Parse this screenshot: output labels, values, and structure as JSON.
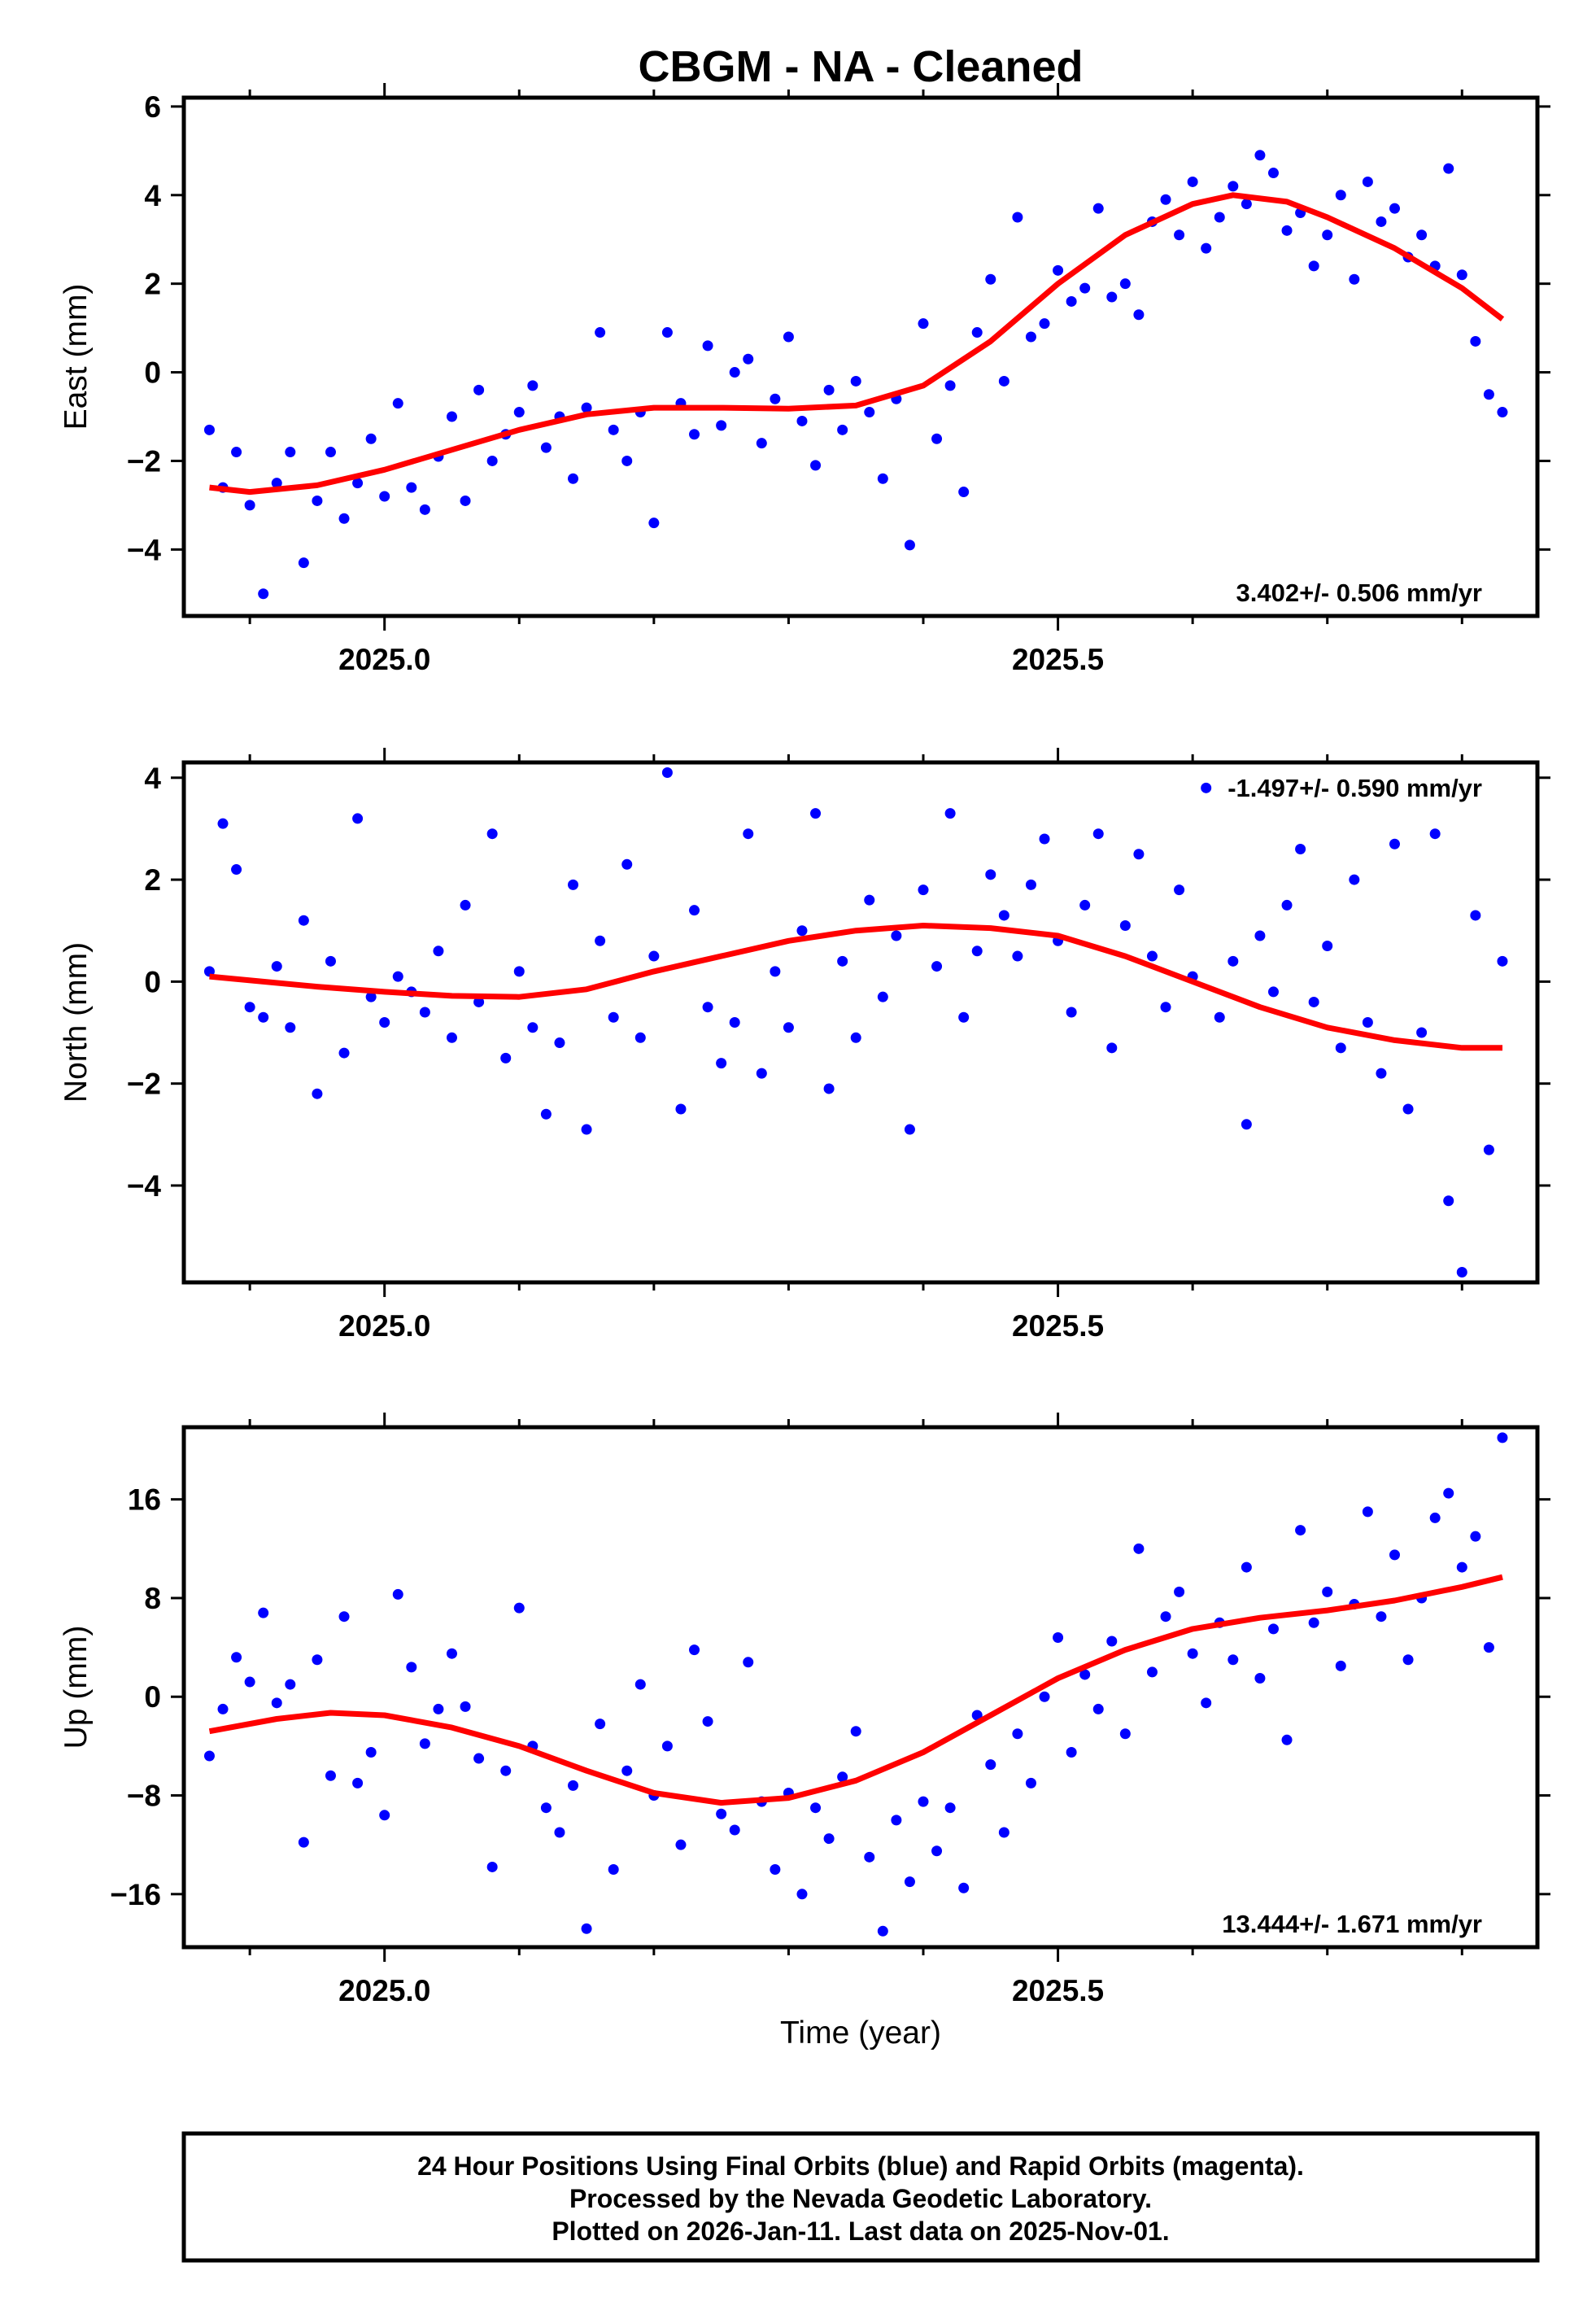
{
  "title": "CBGM  - NA - Cleaned",
  "footer": {
    "line1": "24 Hour Positions Using Final Orbits (blue) and Rapid Orbits (magenta).",
    "line2": "Processed by the Nevada Geodetic Laboratory.",
    "line3": "Plotted on 2026-Jan-11. Last data on 2025-Nov-01."
  },
  "colors": {
    "points": "#0000ff",
    "fit": "#ff0000"
  },
  "chart_data": [
    {
      "type": "scatter",
      "ylabel": "East (mm)",
      "xlabel": "",
      "rate": "3.402+/- 0.506 mm/yr",
      "rate_position": "bottom-right",
      "xlim": [
        2024.851,
        2025.856
      ],
      "ylim": [
        -5.5,
        6.2
      ],
      "xticks": [
        2025.0,
        2025.5
      ],
      "xtick_labels": [
        "2025.0",
        "2025.5"
      ],
      "yticks": [
        -4,
        -2,
        0,
        2,
        4,
        6
      ],
      "x_start": 2024.87,
      "x_step": 0.01,
      "y": [
        -1.3,
        -2.6,
        -1.8,
        -3.0,
        -5.0,
        -2.5,
        -1.8,
        -4.3,
        -2.9,
        -1.8,
        -3.3,
        -2.5,
        -1.5,
        -2.8,
        -0.7,
        -2.6,
        -3.1,
        -1.9,
        -1.0,
        -2.9,
        -0.4,
        -2.0,
        -1.4,
        -0.9,
        -0.3,
        -1.7,
        -1.0,
        -2.4,
        -0.8,
        0.9,
        -1.3,
        -2.0,
        -0.9,
        -3.4,
        0.9,
        -0.7,
        -1.4,
        0.6,
        -1.2,
        0.0,
        0.3,
        -1.6,
        -0.6,
        0.8,
        -1.1,
        -2.1,
        -0.4,
        -1.3,
        -0.2,
        -0.9,
        -2.4,
        -0.6,
        -3.9,
        1.1,
        -1.5,
        -0.3,
        -2.7,
        0.9,
        2.1,
        -0.2,
        3.5,
        0.8,
        1.1,
        2.3,
        1.6,
        1.9,
        3.7,
        1.7,
        2.0,
        1.3,
        3.4,
        3.9,
        3.1,
        4.3,
        2.8,
        3.5,
        4.2,
        3.8,
        4.9,
        4.5,
        3.2,
        3.6,
        2.4,
        3.1,
        4.0,
        2.1,
        4.3,
        3.4,
        3.7,
        2.6,
        3.1,
        2.4,
        4.6,
        2.2,
        0.7,
        -0.5,
        -0.9
      ],
      "fit": {
        "x": [
          2024.87,
          2024.9,
          2024.95,
          2025.0,
          2025.05,
          2025.1,
          2025.15,
          2025.2,
          2025.25,
          2025.3,
          2025.35,
          2025.4,
          2025.45,
          2025.5,
          2025.55,
          2025.6,
          2025.63,
          2025.67,
          2025.7,
          2025.75,
          2025.8,
          2025.83
        ],
        "y": [
          -2.6,
          -2.7,
          -2.55,
          -2.2,
          -1.75,
          -1.3,
          -0.95,
          -0.8,
          -0.8,
          -0.82,
          -0.75,
          -0.3,
          0.7,
          2.0,
          3.1,
          3.8,
          4.0,
          3.85,
          3.5,
          2.8,
          1.9,
          1.2
        ]
      }
    },
    {
      "type": "scatter",
      "ylabel": "North (mm)",
      "xlabel": "",
      "rate": "-1.497+/- 0.590 mm/yr",
      "rate_position": "top-right",
      "xlim": [
        2024.851,
        2025.856
      ],
      "ylim": [
        -5.9,
        4.3
      ],
      "xticks": [
        2025.0,
        2025.5
      ],
      "xtick_labels": [
        "2025.0",
        "2025.5"
      ],
      "yticks": [
        -4,
        -2,
        0,
        2,
        4
      ],
      "x_start": 2024.87,
      "x_step": 0.01,
      "y": [
        0.2,
        3.1,
        2.2,
        -0.5,
        -0.7,
        0.3,
        -0.9,
        1.2,
        -2.2,
        0.4,
        -1.4,
        3.2,
        -0.3,
        -0.8,
        0.1,
        -0.2,
        -0.6,
        0.6,
        -1.1,
        1.5,
        -0.4,
        2.9,
        -1.5,
        0.2,
        -0.9,
        -2.6,
        -1.2,
        1.9,
        -2.9,
        0.8,
        -0.7,
        2.3,
        -1.1,
        0.5,
        4.1,
        -2.5,
        1.4,
        -0.5,
        -1.6,
        -0.8,
        2.9,
        -1.8,
        0.2,
        -0.9,
        1.0,
        3.3,
        -2.1,
        0.4,
        -1.1,
        1.6,
        -0.3,
        0.9,
        -2.9,
        1.8,
        0.3,
        3.3,
        -0.7,
        0.6,
        2.1,
        1.3,
        0.5,
        1.9,
        2.8,
        0.8,
        -0.6,
        1.5,
        2.9,
        -1.3,
        1.1,
        2.5,
        0.5,
        -0.5,
        1.8,
        0.1,
        3.8,
        -0.7,
        0.4,
        -2.8,
        0.9,
        -0.2,
        1.5,
        2.6,
        -0.4,
        0.7,
        -1.3,
        2.0,
        -0.8,
        -1.8,
        2.7,
        -2.5,
        -1.0,
        2.9,
        -4.3,
        -5.7,
        1.3,
        -3.3,
        0.4
      ],
      "fit": {
        "x": [
          2024.87,
          2024.95,
          2025.0,
          2025.05,
          2025.1,
          2025.15,
          2025.2,
          2025.25,
          2025.3,
          2025.35,
          2025.4,
          2025.45,
          2025.5,
          2025.55,
          2025.6,
          2025.65,
          2025.7,
          2025.75,
          2025.8,
          2025.83
        ],
        "y": [
          0.1,
          -0.1,
          -0.2,
          -0.28,
          -0.3,
          -0.15,
          0.2,
          0.5,
          0.8,
          1.0,
          1.1,
          1.05,
          0.9,
          0.5,
          0.0,
          -0.5,
          -0.9,
          -1.15,
          -1.3,
          -1.3
        ]
      }
    },
    {
      "type": "scatter",
      "ylabel": "Up (mm)",
      "xlabel": "Time (year)",
      "rate": "13.444+/- 1.671 mm/yr",
      "rate_position": "bottom-right",
      "xlim": [
        2024.851,
        2025.856
      ],
      "ylim": [
        -20.3,
        21.85
      ],
      "xticks": [
        2025.0,
        2025.5
      ],
      "xtick_labels": [
        "2025.0",
        "2025.5"
      ],
      "yticks": [
        -16,
        -8,
        0,
        8,
        16
      ],
      "x_start": 2024.87,
      "x_step": 0.01,
      "y": [
        -4.8,
        -1.0,
        3.2,
        1.2,
        6.8,
        -0.5,
        1.0,
        -11.8,
        3.0,
        -6.4,
        6.5,
        -7.0,
        -4.5,
        -9.6,
        8.3,
        2.4,
        -3.8,
        -1.0,
        3.5,
        -0.8,
        -5.0,
        -13.8,
        -6.0,
        7.2,
        -4.0,
        -9.0,
        -11.0,
        -7.2,
        -18.8,
        -2.2,
        -14.0,
        -6.0,
        1.0,
        -8.0,
        -4.0,
        -12.0,
        3.8,
        -2.0,
        -9.5,
        -10.8,
        2.8,
        -8.5,
        -14.0,
        -7.8,
        -16.0,
        -9.0,
        -11.5,
        -6.5,
        -2.8,
        -13.0,
        -19.0,
        -10.0,
        -15.0,
        -8.5,
        -12.5,
        -9.0,
        -15.5,
        -1.5,
        -5.5,
        -11.0,
        -3.0,
        -7.0,
        0.0,
        4.8,
        -4.5,
        1.8,
        -1.0,
        4.5,
        -3.0,
        12.0,
        2.0,
        6.5,
        8.5,
        3.5,
        -0.5,
        6.0,
        3.0,
        10.5,
        1.5,
        5.5,
        -3.5,
        13.5,
        6.0,
        8.5,
        2.5,
        7.5,
        15.0,
        6.5,
        11.5,
        3.0,
        8.0,
        14.5,
        16.5,
        10.5,
        13.0,
        4.0,
        21.0
      ],
      "fit": {
        "x": [
          2024.87,
          2024.92,
          2024.96,
          2025.0,
          2025.05,
          2025.1,
          2025.15,
          2025.2,
          2025.25,
          2025.3,
          2025.35,
          2025.4,
          2025.45,
          2025.5,
          2025.55,
          2025.6,
          2025.65,
          2025.7,
          2025.75,
          2025.8,
          2025.83
        ],
        "y": [
          -2.8,
          -1.8,
          -1.3,
          -1.5,
          -2.5,
          -4.0,
          -6.0,
          -7.8,
          -8.6,
          -8.2,
          -6.8,
          -4.5,
          -1.5,
          1.5,
          3.8,
          5.5,
          6.4,
          7.0,
          7.8,
          8.9,
          9.7
        ]
      }
    }
  ]
}
